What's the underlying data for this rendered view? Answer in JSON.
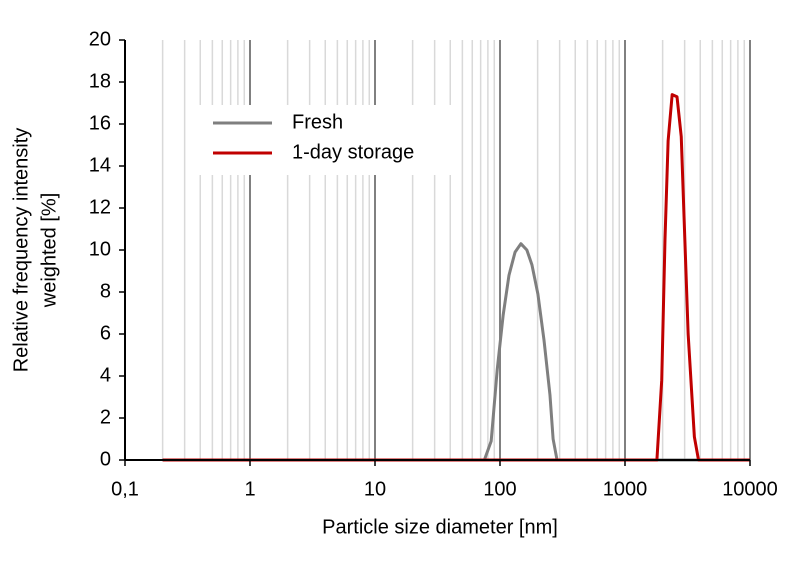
{
  "chart_data": {
    "type": "line",
    "xlabel": "Particle size diameter  [nm]",
    "ylabel": [
      "Relative frequency intensity",
      "weighted [%]"
    ],
    "xscale": "log",
    "xlim": [
      0.1,
      10000
    ],
    "xticks": [
      {
        "value": 0.1,
        "label": "0,1"
      },
      1,
      10,
      100,
      1000,
      10000
    ],
    "ylim": [
      0,
      20
    ],
    "yticks": [
      0,
      2,
      4,
      6,
      8,
      10,
      12,
      14,
      16,
      18,
      20
    ],
    "grid": true,
    "minor_grid": true,
    "legend": "upper left",
    "series": [
      {
        "name": "Fresh",
        "color": "#7f7f7f",
        "x": [
          0.2,
          75,
          85,
          95,
          106,
          118,
          132,
          147,
          164,
          180,
          201,
          225,
          251,
          266,
          286,
          10000
        ],
        "values": [
          0,
          0,
          0.9,
          4.3,
          6.9,
          8.8,
          9.9,
          10.3,
          10.0,
          9.3,
          7.9,
          5.7,
          3.1,
          1.0,
          0,
          0
        ]
      },
      {
        "name": "1-day storage",
        "color": "#c00000",
        "x": [
          0.2,
          1800,
          1967,
          2089,
          2213,
          2384,
          2606,
          2818,
          3200,
          3589,
          3873,
          10000
        ],
        "values": [
          0,
          0,
          3.8,
          10.5,
          15.2,
          17.4,
          17.3,
          15.4,
          6.0,
          1.1,
          0,
          0
        ]
      }
    ]
  }
}
